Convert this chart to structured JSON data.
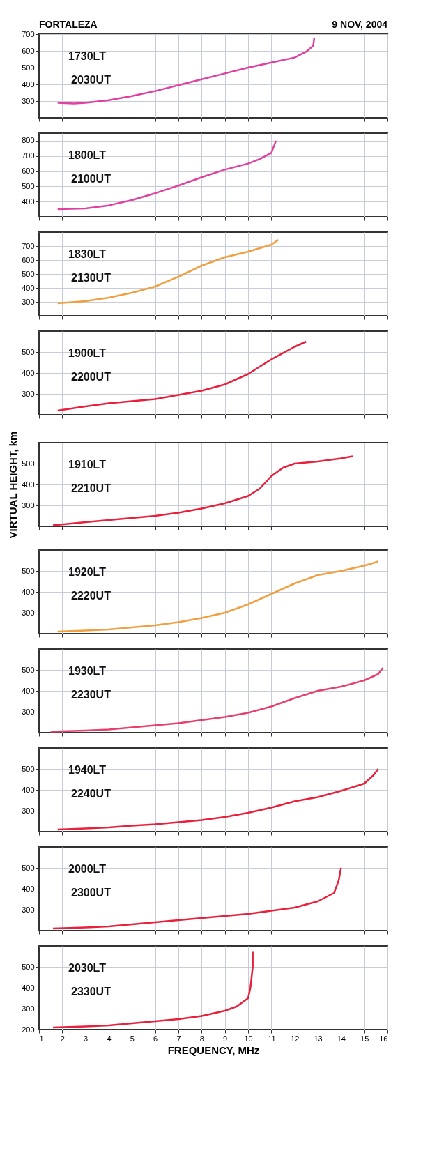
{
  "chart_data": [
    {
      "type": "line",
      "title": "FORTALEZA",
      "subtitle": "9 NOV, 2004",
      "annotations": [
        "1730LT",
        "2030UT"
      ],
      "xlim": [
        1,
        16
      ],
      "xticks": [
        1,
        2,
        3,
        4,
        5,
        6,
        7,
        8,
        9,
        10,
        11,
        12,
        13,
        14,
        15,
        16
      ],
      "ylim": [
        200,
        700
      ],
      "yticks": [
        300,
        400,
        500,
        600,
        700
      ],
      "grid": true,
      "tick_labels": "y",
      "series": [
        {
          "color": "#e040a0",
          "x": [
            1.8,
            2.5,
            3,
            4,
            5,
            6,
            7,
            8,
            9,
            10,
            11,
            12,
            12.5,
            12.8,
            12.85
          ],
          "values": [
            290,
            285,
            290,
            305,
            330,
            360,
            395,
            430,
            465,
            500,
            530,
            560,
            595,
            630,
            680
          ]
        }
      ]
    },
    {
      "type": "line",
      "annotations": [
        "1800LT",
        "2100UT"
      ],
      "xlim": [
        1,
        16
      ],
      "xticks": [
        1,
        2,
        3,
        4,
        5,
        6,
        7,
        8,
        9,
        10,
        11,
        12,
        13,
        14,
        15,
        16
      ],
      "ylim": [
        300,
        850
      ],
      "yticks": [
        400,
        500,
        600,
        700,
        800
      ],
      "grid": true,
      "tick_labels": "y",
      "series": [
        {
          "color": "#e040a0",
          "x": [
            1.8,
            3,
            4,
            5,
            6,
            7,
            8,
            9,
            10,
            10.5,
            11,
            11.2
          ],
          "values": [
            350,
            355,
            375,
            410,
            455,
            505,
            560,
            610,
            650,
            680,
            720,
            800
          ]
        }
      ]
    },
    {
      "type": "line",
      "annotations": [
        "1830LT",
        "2130UT"
      ],
      "xlim": [
        1,
        16
      ],
      "xticks": [
        1,
        2,
        3,
        4,
        5,
        6,
        7,
        8,
        9,
        10,
        11,
        12,
        13,
        14,
        15,
        16
      ],
      "ylim": [
        200,
        800
      ],
      "yticks": [
        300,
        400,
        500,
        600,
        700
      ],
      "grid": true,
      "tick_labels": "y",
      "series": [
        {
          "color": "#f0a040",
          "x": [
            1.8,
            3,
            4,
            5,
            6,
            7,
            8,
            9,
            10,
            11,
            11.3
          ],
          "values": [
            290,
            305,
            330,
            365,
            410,
            480,
            560,
            620,
            660,
            710,
            745
          ]
        }
      ]
    },
    {
      "type": "line",
      "annotations": [
        "1900LT",
        "2200UT"
      ],
      "xlim": [
        1,
        16
      ],
      "xticks": [
        1,
        2,
        3,
        4,
        5,
        6,
        7,
        8,
        9,
        10,
        11,
        12,
        13,
        14,
        15,
        16
      ],
      "ylim": [
        200,
        600
      ],
      "yticks": [
        300,
        400,
        500
      ],
      "grid": true,
      "tick_labels": "y",
      "series": [
        {
          "color": "#e8203c",
          "x": [
            1.8,
            3,
            4,
            5,
            6,
            7,
            8,
            9,
            10,
            11,
            12,
            12.5
          ],
          "values": [
            220,
            240,
            255,
            265,
            275,
            295,
            315,
            345,
            395,
            465,
            525,
            550
          ]
        }
      ]
    },
    {
      "type": "line",
      "ylabel": "VIRTUAL HEIGHT, km",
      "annotations": [
        "1910LT",
        "2210UT"
      ],
      "xlim": [
        1,
        16
      ],
      "xticks": [
        1,
        2,
        3,
        4,
        5,
        6,
        7,
        8,
        9,
        10,
        11,
        12,
        13,
        14,
        15,
        16
      ],
      "ylim": [
        200,
        600
      ],
      "yticks": [
        300,
        400,
        500
      ],
      "grid": true,
      "tick_labels": "y",
      "series": [
        {
          "color": "#e8203c",
          "x": [
            1.6,
            3,
            4,
            5,
            6,
            7,
            8,
            9,
            10,
            10.5,
            11,
            11.5,
            12,
            13,
            14,
            14.5
          ],
          "values": [
            205,
            220,
            230,
            240,
            250,
            265,
            285,
            310,
            345,
            380,
            440,
            480,
            500,
            510,
            525,
            535
          ]
        }
      ]
    },
    {
      "type": "line",
      "annotations": [
        "1920LT",
        "2220UT"
      ],
      "xlim": [
        1,
        16
      ],
      "xticks": [
        1,
        2,
        3,
        4,
        5,
        6,
        7,
        8,
        9,
        10,
        11,
        12,
        13,
        14,
        15,
        16
      ],
      "ylim": [
        200,
        600
      ],
      "yticks": [
        300,
        400,
        500
      ],
      "grid": true,
      "tick_labels": "y",
      "series": [
        {
          "color": "#f0a040",
          "x": [
            1.8,
            3,
            4,
            5,
            6,
            7,
            8,
            9,
            10,
            11,
            12,
            12.5,
            13,
            14,
            15,
            15.6
          ],
          "values": [
            210,
            215,
            220,
            230,
            240,
            255,
            275,
            300,
            340,
            390,
            440,
            460,
            480,
            500,
            525,
            545
          ]
        }
      ]
    },
    {
      "type": "line",
      "annotations": [
        "1930LT",
        "2230UT"
      ],
      "xlim": [
        1,
        16
      ],
      "xticks": [
        1,
        2,
        3,
        4,
        5,
        6,
        7,
        8,
        9,
        10,
        11,
        12,
        13,
        14,
        15,
        16
      ],
      "ylim": [
        200,
        600
      ],
      "yticks": [
        300,
        400,
        500
      ],
      "grid": true,
      "tick_labels": "y",
      "series": [
        {
          "color": "#e8406c",
          "x": [
            1.5,
            3,
            4,
            5,
            6,
            7,
            8,
            9,
            10,
            11,
            12,
            13,
            14,
            15,
            15.6,
            15.8
          ],
          "values": [
            205,
            210,
            215,
            225,
            235,
            245,
            260,
            275,
            295,
            325,
            365,
            400,
            420,
            450,
            480,
            510
          ]
        }
      ]
    },
    {
      "type": "line",
      "annotations": [
        "1940LT",
        "2240UT"
      ],
      "xlim": [
        1,
        16
      ],
      "xticks": [
        1,
        2,
        3,
        4,
        5,
        6,
        7,
        8,
        9,
        10,
        11,
        12,
        13,
        14,
        15,
        16
      ],
      "ylim": [
        200,
        600
      ],
      "yticks": [
        300,
        400,
        500
      ],
      "grid": true,
      "tick_labels": "y",
      "series": [
        {
          "color": "#e8203c",
          "x": [
            1.8,
            3,
            4,
            5,
            6,
            7,
            8,
            9,
            10,
            11,
            12,
            13,
            14,
            15,
            15.4,
            15.6
          ],
          "values": [
            210,
            215,
            220,
            228,
            235,
            245,
            255,
            270,
            290,
            315,
            345,
            365,
            395,
            430,
            470,
            500
          ]
        }
      ]
    },
    {
      "type": "line",
      "annotations": [
        "2000LT",
        "2300UT"
      ],
      "xlim": [
        1,
        16
      ],
      "xticks": [
        1,
        2,
        3,
        4,
        5,
        6,
        7,
        8,
        9,
        10,
        11,
        12,
        13,
        14,
        15,
        16
      ],
      "ylim": [
        200,
        600
      ],
      "yticks": [
        300,
        400,
        500
      ],
      "grid": true,
      "tick_labels": "y",
      "series": [
        {
          "color": "#e8203c",
          "x": [
            1.6,
            3,
            4,
            5,
            6,
            7,
            8,
            9,
            10,
            11,
            12,
            13,
            13.7,
            13.9,
            14
          ],
          "values": [
            210,
            215,
            220,
            230,
            240,
            250,
            260,
            270,
            280,
            295,
            310,
            340,
            380,
            440,
            500
          ]
        }
      ]
    },
    {
      "type": "line",
      "xlabel": "FREQUENCY, MHz",
      "annotations": [
        "2030LT",
        "2330UT"
      ],
      "xlim": [
        1,
        16
      ],
      "xticks": [
        1,
        2,
        3,
        4,
        5,
        6,
        7,
        8,
        9,
        10,
        11,
        12,
        13,
        14,
        15,
        16
      ],
      "ylim": [
        200,
        600
      ],
      "yticks": [
        200,
        300,
        400,
        500
      ],
      "grid": true,
      "series": [
        {
          "color": "#e8203c",
          "x": [
            1.6,
            3,
            4,
            5,
            6,
            7,
            8,
            9,
            9.5,
            10,
            10.1,
            10.2,
            10.2
          ],
          "values": [
            210,
            215,
            220,
            230,
            240,
            250,
            265,
            290,
            310,
            350,
            400,
            500,
            575
          ]
        }
      ]
    }
  ]
}
